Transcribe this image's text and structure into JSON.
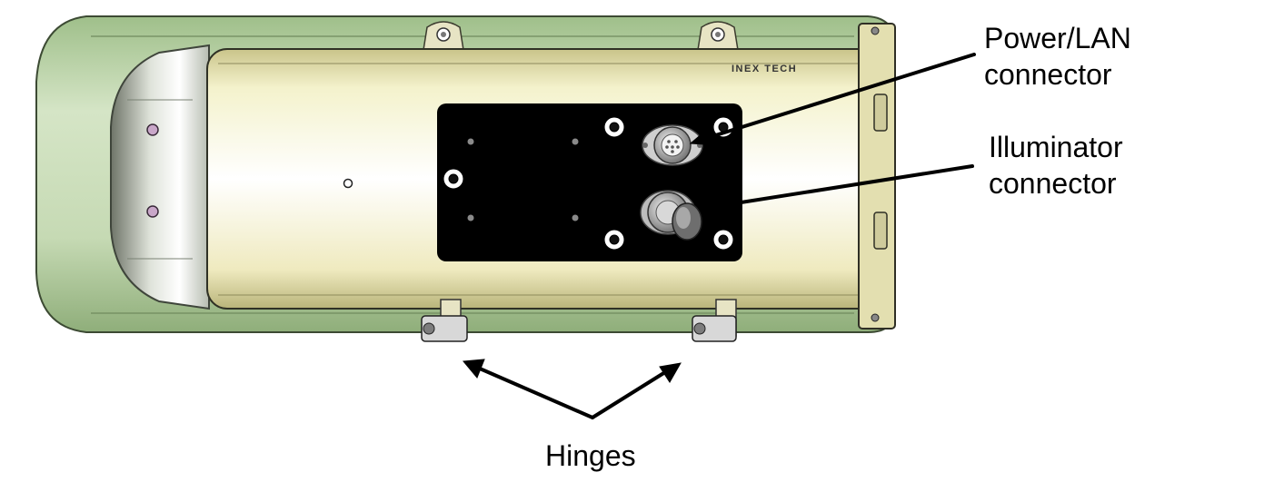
{
  "brand_mark": "INEX TECH",
  "labels": {
    "power_lan": {
      "line1": "Power/LAN",
      "line2": "connector"
    },
    "illuminator": {
      "line1": "Illuminator",
      "line2": "connector"
    },
    "hinges": "Hinges"
  },
  "colors": {
    "outer_shell": "#b8cfa6",
    "inner_body": "#f2f0c4",
    "panel": "#000000",
    "metal": "#b5b5b5",
    "arrow": "#000000"
  }
}
